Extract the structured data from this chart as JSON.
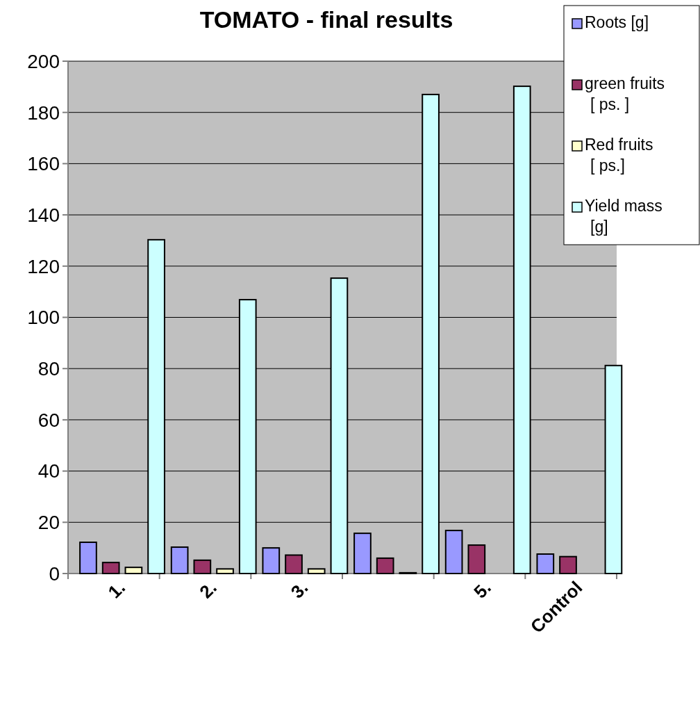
{
  "chart_data": {
    "type": "bar",
    "title": "TOMATO - final results",
    "categories": [
      "1.",
      "2.",
      "3.",
      null,
      "5.",
      "Control"
    ],
    "series": [
      {
        "name": "Roots [g]",
        "color": "#9999ff",
        "values": [
          12.2,
          10.3,
          10,
          15.7,
          16.8,
          7.6
        ]
      },
      {
        "name": "green fruits [ ps. ]",
        "color": "#993366",
        "values": [
          4.3,
          5.2,
          7.2,
          6,
          11.1,
          6.6
        ]
      },
      {
        "name": "Red fruits [ ps.]",
        "color": "#ffffcc",
        "values": [
          2.4,
          1.8,
          1.8,
          0.3,
          0,
          0
        ]
      },
      {
        "name": "Yield mass [g]",
        "color": "#ccffff",
        "values": [
          130.3,
          106.9,
          115.3,
          187,
          190.2,
          81.2
        ]
      }
    ],
    "ylim": [
      0,
      200
    ],
    "yticks": [
      0,
      20,
      40,
      60,
      80,
      100,
      120,
      140,
      160,
      180,
      200
    ],
    "grid": "y",
    "legend": "top right"
  }
}
